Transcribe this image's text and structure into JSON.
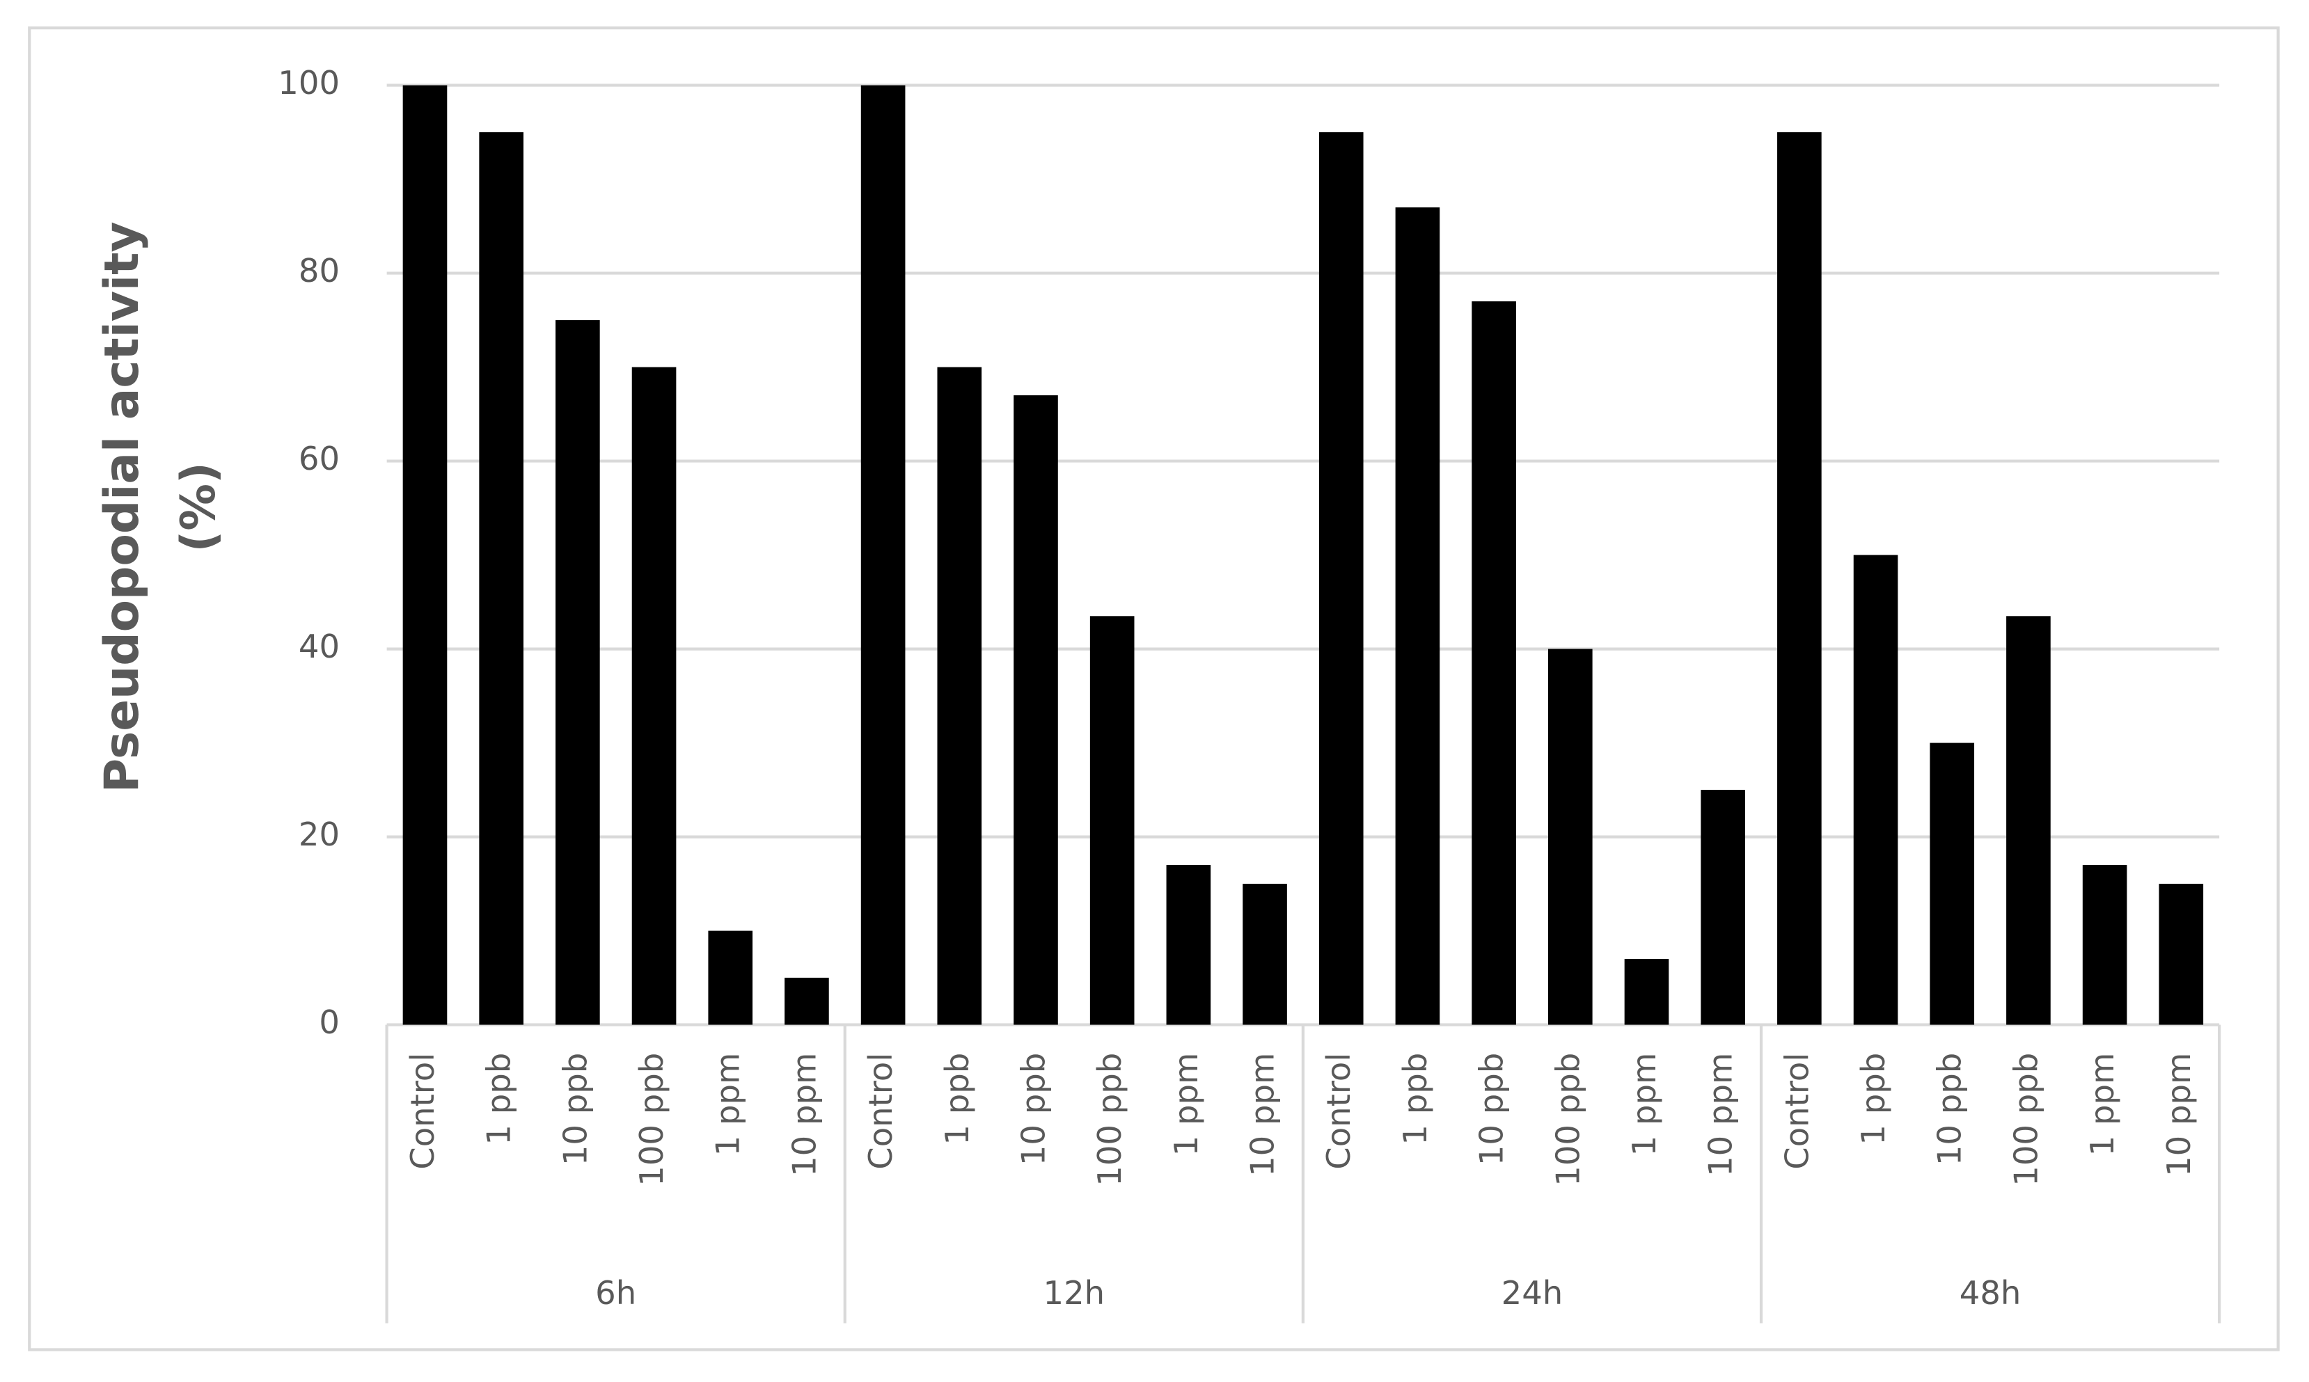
{
  "chart_data": {
    "type": "bar",
    "ylabel": [
      "Pseudopodial activity",
      "(%)"
    ],
    "categories": [
      "Control",
      "1 ppb",
      "10 ppb",
      "100 ppb",
      "1 ppm",
      "10 ppm",
      "Control",
      "1 ppb",
      "10 ppb",
      "100 ppb",
      "1 ppm",
      "10 ppm",
      "Control",
      "1 ppb",
      "10 ppb",
      "100 ppb",
      "1 ppm",
      "10 ppm",
      "Control",
      "1 ppb",
      "10 ppb",
      "100 ppb",
      "1 ppm",
      "10 ppm"
    ],
    "groups": [
      "6h",
      "12h",
      "24h",
      "48h"
    ],
    "values": [
      100,
      95,
      75,
      70,
      10,
      5,
      100,
      70,
      67,
      43.5,
      17,
      15,
      95,
      87,
      77,
      40,
      7,
      25,
      95,
      50,
      30,
      43.5,
      17,
      15
    ],
    "color": "#000000",
    "ylim": [
      0,
      100
    ],
    "yticks": [
      0,
      20,
      40,
      60,
      80,
      100
    ],
    "grid": true
  }
}
